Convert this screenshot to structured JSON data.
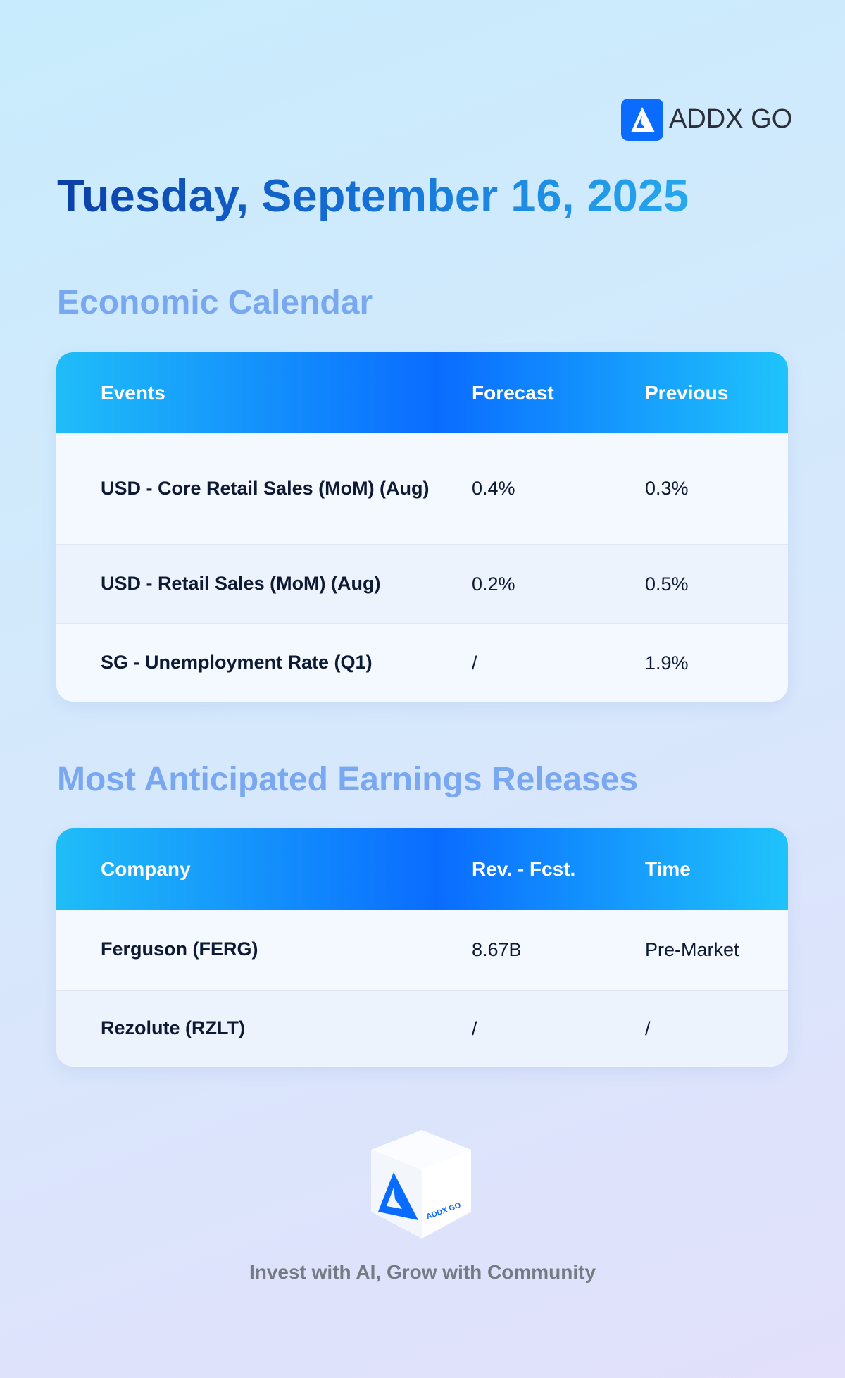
{
  "header": {
    "brand": "ADDX GO",
    "date": "Tuesday, September 16, 2025"
  },
  "economic_calendar": {
    "title": "Economic Calendar",
    "columns": [
      "Events",
      "Forecast",
      "Previous"
    ],
    "rows": [
      [
        "USD - Core Retail Sales (MoM) (Aug)",
        "0.4%",
        "0.3%"
      ],
      [
        "USD - Retail Sales (MoM) (Aug)",
        "0.2%",
        "0.5%"
      ],
      [
        "SG - Unemployment Rate (Q1)",
        "/",
        "1.9%"
      ]
    ]
  },
  "earnings": {
    "title": "Most Anticipated Earnings Releases",
    "columns": [
      "Company",
      "Rev. - Fcst.",
      "Time"
    ],
    "rows": [
      [
        "Ferguson (FERG)",
        "8.67B",
        "Pre-Market"
      ],
      [
        "Rezolute (RZLT)",
        "/",
        "/"
      ]
    ]
  },
  "footer": {
    "logo_text": "ADDX GO",
    "tagline": "Invest with AI, Grow with Community"
  }
}
